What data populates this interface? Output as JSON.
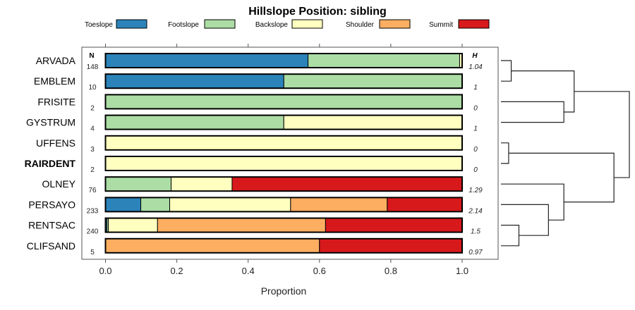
{
  "chart_data": {
    "type": "bar",
    "stacked": true,
    "orientation": "horizontal",
    "title": "Hillslope Position: sibling",
    "xlabel": "Proportion",
    "ylabel": "",
    "xlim": [
      0,
      1
    ],
    "x_ticks": [
      "0.0",
      "0.2",
      "0.4",
      "0.6",
      "0.8",
      "1.0"
    ],
    "x_tick_values": [
      0,
      0.2,
      0.4,
      0.6,
      0.8,
      1.0
    ],
    "legend_position": "top",
    "n_header": "N",
    "h_header": "H",
    "series": [
      {
        "name": "Toeslope",
        "color": "#2B83BA"
      },
      {
        "name": "Footslope",
        "color": "#ABDDA4"
      },
      {
        "name": "Backslope",
        "color": "#FFFFBF"
      },
      {
        "name": "Shoulder",
        "color": "#FDAE61"
      },
      {
        "name": "Summit",
        "color": "#D7191C"
      }
    ],
    "rows": [
      {
        "name": "ARVADA",
        "bold": false,
        "n": "148",
        "h": "1.04",
        "values": [
          0.568,
          0.425,
          0.007,
          0,
          0
        ]
      },
      {
        "name": "EMBLEM",
        "bold": false,
        "n": "10",
        "h": "1",
        "values": [
          0.5,
          0.5,
          0,
          0,
          0
        ]
      },
      {
        "name": "FRISITE",
        "bold": false,
        "n": "2",
        "h": "0",
        "values": [
          0,
          1,
          0,
          0,
          0
        ]
      },
      {
        "name": "GYSTRUM",
        "bold": false,
        "n": "4",
        "h": "1",
        "values": [
          0,
          0.5,
          0.5,
          0,
          0
        ]
      },
      {
        "name": "UFFENS",
        "bold": false,
        "n": "3",
        "h": "0",
        "values": [
          0,
          0,
          1,
          0,
          0
        ]
      },
      {
        "name": "RAIRDENT",
        "bold": true,
        "n": "2",
        "h": "0",
        "values": [
          0,
          0,
          1,
          0,
          0
        ]
      },
      {
        "name": "OLNEY",
        "bold": false,
        "n": "76",
        "h": "1.29",
        "values": [
          0,
          0.184,
          0.171,
          0,
          0.645
        ]
      },
      {
        "name": "PERSAYO",
        "bold": false,
        "n": "233",
        "h": "2.14",
        "values": [
          0.099,
          0.081,
          0.339,
          0.271,
          0.21
        ]
      },
      {
        "name": "RENTSAC",
        "bold": false,
        "n": "240",
        "h": "1.5",
        "values": [
          0.004,
          0.004,
          0.138,
          0.471,
          0.383
        ]
      },
      {
        "name": "CLIFSAND",
        "bold": false,
        "n": "5",
        "h": "0.97",
        "values": [
          0,
          0,
          0,
          0.6,
          0.4
        ]
      }
    ],
    "dendrogram": {
      "merges": [
        {
          "a": "ARVADA",
          "b": "EMBLEM",
          "height": 0.08,
          "id": "c1"
        },
        {
          "a": "FRISITE",
          "b": "GYSTRUM",
          "height": 0.49,
          "id": "c2"
        },
        {
          "a": "c1",
          "b": "c2",
          "height": 0.57,
          "id": "c3"
        },
        {
          "a": "UFFENS",
          "b": "RAIRDENT",
          "height": 0.06,
          "id": "c4"
        },
        {
          "a": "RENTSAC",
          "b": "CLIFSAND",
          "height": 0.14,
          "id": "c5"
        },
        {
          "a": "PERSAYO",
          "b": "c5",
          "height": 0.37,
          "id": "c6"
        },
        {
          "a": "OLNEY",
          "b": "c6",
          "height": 0.49,
          "id": "c7"
        },
        {
          "a": "c4",
          "b": "c7",
          "height": 0.88,
          "id": "c8"
        },
        {
          "a": "c3",
          "b": "c8",
          "height": 1.0,
          "id": "c9"
        }
      ]
    }
  }
}
